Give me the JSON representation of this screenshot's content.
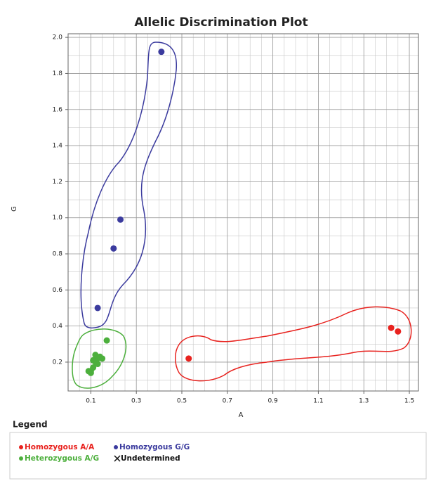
{
  "chart_data": {
    "type": "scatter",
    "title": "Allelic Discrimination Plot",
    "x_label": "A",
    "y_label": "G",
    "legend_title": "Legend",
    "xlim": [
      0,
      1.54
    ],
    "ylim": [
      0.04,
      2.02
    ],
    "xticks": [
      0.1,
      0.3,
      0.5,
      0.7,
      0.9,
      1.1,
      1.3,
      1.5
    ],
    "yticks": [
      0.2,
      0.4,
      0.6,
      0.8,
      1.0,
      1.2,
      1.4,
      1.6,
      1.8,
      2.0
    ],
    "xminorticks": [
      0.05,
      0.1,
      0.15,
      0.2,
      0.25,
      0.3,
      0.35,
      0.4,
      0.45,
      0.5,
      0.55,
      0.6,
      0.65,
      0.7,
      0.75,
      0.8,
      0.85,
      0.9,
      0.95,
      1.0,
      1.05,
      1.1,
      1.15,
      1.2,
      1.25,
      1.3,
      1.35,
      1.4,
      1.45,
      1.5
    ],
    "yminorticks": [
      0.1,
      0.2,
      0.3,
      0.4,
      0.5,
      0.6,
      0.7,
      0.8,
      0.9,
      1.0,
      1.1,
      1.2,
      1.3,
      1.4,
      1.5,
      1.6,
      1.7,
      1.8,
      1.9,
      2.0
    ],
    "grid": true,
    "series": [
      {
        "name": "Homozygous A/A",
        "color": "#e8221e",
        "marker": "dot",
        "x": [
          0.53,
          1.42,
          1.45
        ],
        "values": [
          0.22,
          0.39,
          0.37
        ]
      },
      {
        "name": "Homozygous G/G",
        "color": "#3b3b9e",
        "marker": "dot",
        "x": [
          0.41,
          0.23,
          0.2,
          0.13
        ],
        "values": [
          1.92,
          0.99,
          0.83,
          0.5
        ]
      },
      {
        "name": "Heterozygous A/G",
        "color": "#4caf3c",
        "marker": "dot",
        "x": [
          0.17,
          0.1,
          0.11,
          0.12,
          0.13,
          0.14,
          0.12,
          0.1,
          0.09,
          0.13,
          0.15,
          0.11
        ],
        "values": [
          0.32,
          0.15,
          0.17,
          0.2,
          0.22,
          0.23,
          0.24,
          0.14,
          0.15,
          0.19,
          0.22,
          0.21
        ]
      },
      {
        "name": "Undetermined",
        "color": "#111111",
        "marker": "x",
        "x": [],
        "values": []
      }
    ]
  }
}
